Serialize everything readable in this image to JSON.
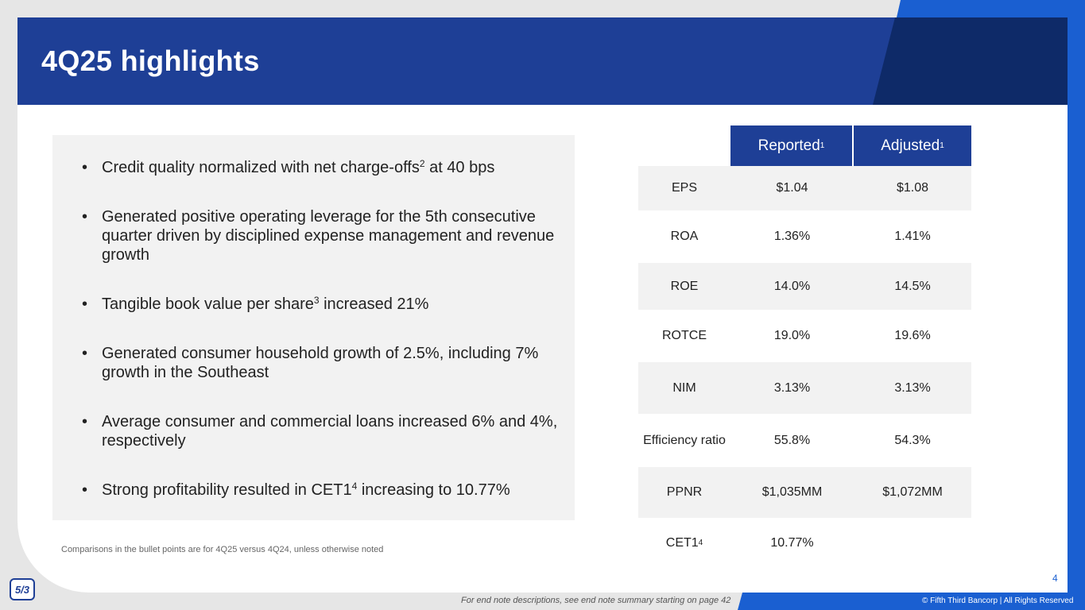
{
  "title": "4Q25 highlights",
  "bullets": [
    {
      "pre": "Credit quality normalized with net charge-offs",
      "sup": "2",
      "post": " at 40 bps"
    },
    {
      "pre": "Generated positive operating leverage for the 5th consecutive quarter driven by disciplined expense management and revenue growth",
      "sup": "",
      "post": ""
    },
    {
      "pre": "Tangible book value per share",
      "sup": "3",
      "post": " increased 21%"
    },
    {
      "pre": "Generated consumer household growth of 2.5%, including 7% growth in the Southeast",
      "sup": "",
      "post": ""
    },
    {
      "pre": "Average consumer and commercial loans increased 6% and 4%, respectively",
      "sup": "",
      "post": ""
    },
    {
      "pre": "Strong profitability resulted in CET1",
      "sup": "4",
      "post": " increasing to 10.77%"
    }
  ],
  "bullet_glyph": "•",
  "comparison_note": "Comparisons in the bullet points are for 4Q25 versus 4Q24, unless otherwise noted",
  "table": {
    "headers": {
      "reported": "Reported",
      "reported_sup": "1",
      "adjusted": "Adjusted",
      "adjusted_sup": "1"
    },
    "rows": [
      {
        "metric": "EPS",
        "sup": "",
        "reported": "$1.04",
        "adjusted": "$1.08"
      },
      {
        "metric": "ROA",
        "sup": "",
        "reported": "1.36%",
        "adjusted": "1.41%"
      },
      {
        "metric": "ROE",
        "sup": "",
        "reported": "14.0%",
        "adjusted": "14.5%"
      },
      {
        "metric": "ROTCE",
        "sup": "",
        "reported": "19.0%",
        "adjusted": "19.6%"
      },
      {
        "metric": "NIM",
        "sup": "",
        "reported": "3.13%",
        "adjusted": "3.13%"
      },
      {
        "metric": "Efficiency ratio",
        "sup": "",
        "reported": "55.8%",
        "adjusted": "54.3%"
      },
      {
        "metric": "PPNR",
        "sup": "",
        "reported": "$1,035MM",
        "adjusted": "$1,072MM"
      },
      {
        "metric": "CET1",
        "sup": "4",
        "reported": "10.77%",
        "adjusted": ""
      }
    ]
  },
  "page_number": "4",
  "logo_text": "5/3",
  "footer_note": "For end note descriptions, see end note summary starting on page 42",
  "copyright": "© Fifth Third Bancorp | All Rights Reserved",
  "colors": {
    "primary_blue": "#1e3f96",
    "dark_navy": "#0e2a68",
    "accent_blue": "#1a5fd1",
    "panel_gray": "#f2f2f2"
  }
}
